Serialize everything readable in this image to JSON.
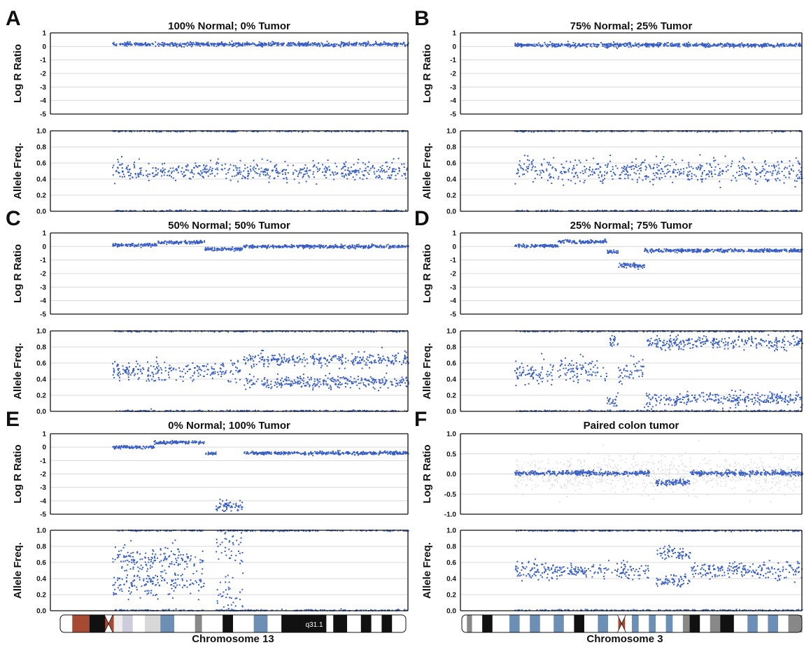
{
  "colors": {
    "points": "#3a5fc4",
    "grid": "#d9d9d9",
    "axis": "#111111"
  },
  "chart_data": [
    {
      "id": "A",
      "type": "scatter",
      "title": "100% Normal; 0% Tumor",
      "panels": [
        {
          "ylabel": "Log R Ratio",
          "ylim": [
            -5,
            1
          ],
          "yticks": [
            "1",
            "0",
            "-1",
            "-2",
            "-3",
            "-4",
            "-5"
          ],
          "segments": [
            {
              "x": [
                0.0,
                1.0
              ],
              "y": 0.15,
              "spread": 0.12
            }
          ]
        },
        {
          "ylabel": "Allele Freq.",
          "ylim": [
            0,
            1
          ],
          "yticks": [
            "1.0",
            "0.8",
            "0.6",
            "0.4",
            "0.2",
            "0.0"
          ],
          "segments": [
            {
              "x": [
                0.0,
                1.0
              ],
              "bands": [
                0.0,
                0.5,
                1.0
              ],
              "spread": 0.06
            }
          ]
        }
      ]
    },
    {
      "id": "B",
      "type": "scatter",
      "title": "75% Normal; 25% Tumor",
      "panels": [
        {
          "ylabel": "Log R Ratio",
          "ylim": [
            -5,
            1
          ],
          "yticks": [
            "1",
            "0",
            "-1",
            "-2",
            "-3",
            "-4",
            "-5"
          ],
          "segments": [
            {
              "x": [
                0.0,
                1.0
              ],
              "y": 0.1,
              "spread": 0.12
            }
          ]
        },
        {
          "ylabel": "Allele Freq.",
          "ylim": [
            0,
            1
          ],
          "yticks": [
            "1.0",
            "0.8",
            "0.6",
            "0.4",
            "0.2",
            "0.0"
          ],
          "segments": [
            {
              "x": [
                0.0,
                1.0
              ],
              "bands": [
                0.0,
                0.5,
                1.0
              ],
              "spread": 0.07
            }
          ]
        }
      ]
    },
    {
      "id": "C",
      "type": "scatter",
      "title": "50% Normal; 50% Tumor",
      "panels": [
        {
          "ylabel": "Log R Ratio",
          "ylim": [
            -5,
            1
          ],
          "yticks": [
            "1",
            "0",
            "-1",
            "-2",
            "-3",
            "-4",
            "-5"
          ],
          "segments": [
            {
              "x": [
                0.0,
                0.15
              ],
              "y": 0.1,
              "spread": 0.1
            },
            {
              "x": [
                0.15,
                0.31
              ],
              "y": 0.3,
              "spread": 0.1
            },
            {
              "x": [
                0.31,
                0.44
              ],
              "y": -0.2,
              "spread": 0.1
            },
            {
              "x": [
                0.44,
                1.0
              ],
              "y": 0.0,
              "spread": 0.1
            }
          ]
        },
        {
          "ylabel": "Allele Freq.",
          "ylim": [
            0,
            1
          ],
          "yticks": [
            "1.0",
            "0.8",
            "0.6",
            "0.4",
            "0.2",
            "0.0"
          ],
          "segments": [
            {
              "x": [
                0.0,
                0.44
              ],
              "bands": [
                0.0,
                0.5,
                1.0
              ],
              "spread": 0.06
            },
            {
              "x": [
                0.44,
                1.0
              ],
              "bands": [
                0.0,
                0.36,
                0.64,
                1.0
              ],
              "spread": 0.04
            }
          ]
        }
      ]
    },
    {
      "id": "D",
      "type": "scatter",
      "title": "25% Normal; 75% Tumor",
      "panels": [
        {
          "ylabel": "Log R Ratio",
          "ylim": [
            -5,
            1
          ],
          "yticks": [
            "1",
            "0",
            "-1",
            "-2",
            "-3",
            "-4",
            "-5"
          ],
          "segments": [
            {
              "x": [
                0.0,
                0.15
              ],
              "y": 0.05,
              "spread": 0.1
            },
            {
              "x": [
                0.15,
                0.32
              ],
              "y": 0.35,
              "spread": 0.1
            },
            {
              "x": [
                0.32,
                0.36
              ],
              "y": -0.4,
              "spread": 0.1
            },
            {
              "x": [
                0.36,
                0.45
              ],
              "y": -1.4,
              "spread": 0.15
            },
            {
              "x": [
                0.45,
                1.0
              ],
              "y": -0.3,
              "spread": 0.1
            }
          ]
        },
        {
          "ylabel": "Allele Freq.",
          "ylim": [
            0,
            1
          ],
          "yticks": [
            "1.0",
            "0.8",
            "0.6",
            "0.4",
            "0.2",
            "0.0"
          ],
          "segments": [
            {
              "x": [
                0.0,
                0.32
              ],
              "bands": [
                0.0,
                0.5,
                1.0
              ],
              "spread": 0.08
            },
            {
              "x": [
                0.32,
                0.36
              ],
              "bands": [
                0.0,
                0.12,
                0.88,
                1.0
              ],
              "spread": 0.04
            },
            {
              "x": [
                0.36,
                0.45
              ],
              "bands": [
                0.0,
                0.5,
                1.0
              ],
              "spread": 0.06
            },
            {
              "x": [
                0.45,
                1.0
              ],
              "bands": [
                0.0,
                0.15,
                0.85,
                1.0
              ],
              "spread": 0.04
            }
          ]
        }
      ]
    },
    {
      "id": "E",
      "type": "scatter",
      "title": "0% Normal; 100% Tumor",
      "panels": [
        {
          "ylabel": "Log R Ratio",
          "ylim": [
            -5,
            1
          ],
          "yticks": [
            "1",
            "0",
            "-1",
            "-2",
            "-3",
            "-4",
            "-5"
          ],
          "segments": [
            {
              "x": [
                0.0,
                0.14
              ],
              "y": 0.0,
              "spread": 0.1
            },
            {
              "x": [
                0.14,
                0.31
              ],
              "y": 0.35,
              "spread": 0.1
            },
            {
              "x": [
                0.31,
                0.35
              ],
              "y": -0.5,
              "spread": 0.1
            },
            {
              "x": [
                0.35,
                0.44
              ],
              "y": -4.4,
              "spread": 0.35
            },
            {
              "x": [
                0.44,
                1.0
              ],
              "y": -0.45,
              "spread": 0.1
            }
          ]
        },
        {
          "ylabel": "Allele Freq.",
          "ylim": [
            0,
            1
          ],
          "yticks": [
            "1.0",
            "0.8",
            "0.6",
            "0.4",
            "0.2",
            "0.0"
          ],
          "segments": [
            {
              "x": [
                0.0,
                0.31
              ],
              "bands": [
                0.0,
                0.35,
                0.65,
                1.0
              ],
              "spread": 0.08
            },
            {
              "x": [
                0.35,
                0.44
              ],
              "bands": [
                0.0,
                0.15,
                0.85,
                1.0
              ],
              "spread": 0.15
            },
            {
              "x": [
                0.44,
                1.0
              ],
              "bands": [
                0.0,
                1.0
              ],
              "spread": 0.02
            }
          ]
        }
      ]
    },
    {
      "id": "F",
      "type": "scatter",
      "title": "Paired colon tumor",
      "panels": [
        {
          "ylabel": "Log R Ratio",
          "ylim": [
            -1,
            1
          ],
          "yticks": [
            "1.0",
            "0.5",
            "0.0",
            "-0.5",
            "-1.0"
          ],
          "segments": [
            {
              "x": [
                0.0,
                0.47
              ],
              "y": 0.02,
              "spread": 0.05
            },
            {
              "x": [
                0.49,
                0.61
              ],
              "y": -0.22,
              "spread": 0.06
            },
            {
              "x": [
                0.61,
                1.0
              ],
              "y": 0.02,
              "spread": 0.05
            }
          ]
        },
        {
          "ylabel": "Allele Freq.",
          "ylim": [
            0,
            1
          ],
          "yticks": [
            "1.0",
            "0.8",
            "0.6",
            "0.4",
            "0.2",
            "0.0"
          ],
          "segments": [
            {
              "x": [
                0.0,
                0.47
              ],
              "bands": [
                0.0,
                0.5,
                1.0
              ],
              "spread": 0.05
            },
            {
              "x": [
                0.49,
                0.61
              ],
              "bands": [
                0.0,
                0.37,
                0.72,
                1.0
              ],
              "spread": 0.04
            },
            {
              "x": [
                0.61,
                1.0
              ],
              "bands": [
                0.0,
                0.5,
                1.0
              ],
              "spread": 0.05
            }
          ]
        }
      ]
    }
  ],
  "ideograms": [
    {
      "label": "Chromosome 13",
      "band_label": "q31.1"
    },
    {
      "label": "Chromosome 3",
      "band_label": ""
    }
  ]
}
